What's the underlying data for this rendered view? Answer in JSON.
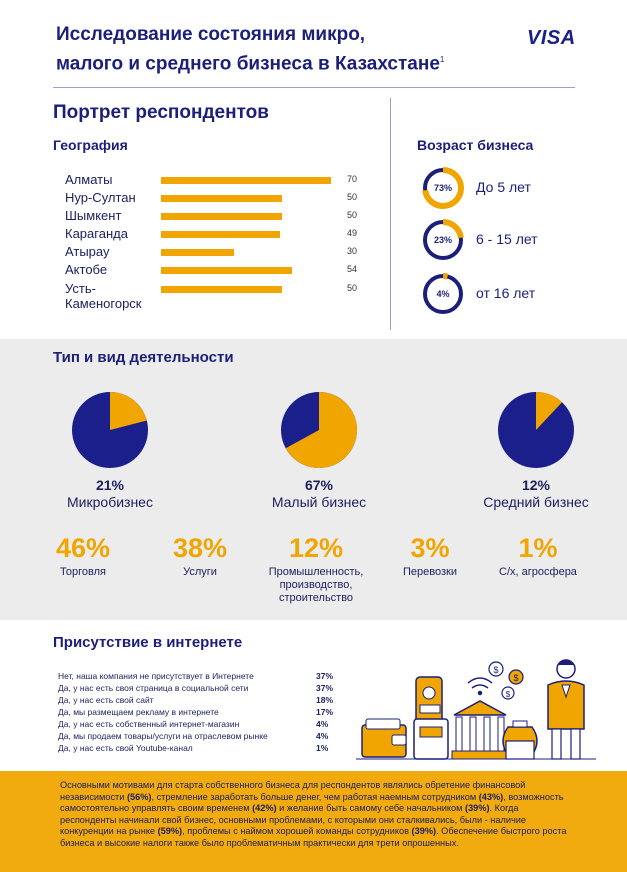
{
  "header": {
    "title_line1": "Исследование состояния микро,",
    "title_line2": "малого и среднего бизнеса в Казахстане",
    "footnote_mark": "1",
    "logo": "VISA"
  },
  "portrait": {
    "title": "Портрет респондентов",
    "geography": {
      "title": "География",
      "max": 70,
      "items": [
        {
          "label": "Алматы",
          "value": 70
        },
        {
          "label": "Нур-Султан",
          "value": 50
        },
        {
          "label": "Шымкент",
          "value": 50
        },
        {
          "label": "Караганда",
          "value": 49
        },
        {
          "label": "Атырау",
          "value": 30
        },
        {
          "label": "Актобе",
          "value": 54
        },
        {
          "label": "Усть-\nКаменогорск",
          "value": 50
        }
      ],
      "labels": [
        "Алматы",
        "Нур-Султан",
        "Шымкент",
        "Караганда",
        "Атырау",
        "Актобе",
        "Усть-Каменогорск"
      ],
      "values_text": [
        "70",
        "50",
        "50",
        "49",
        "30",
        "54",
        "50"
      ]
    },
    "age": {
      "title": "Возраст бизнеса",
      "items": [
        {
          "pct_text": "73%",
          "fraction": 0.73,
          "label": "До 5 лет"
        },
        {
          "pct_text": "23%",
          "fraction": 0.23,
          "label": "6 - 15 лет"
        },
        {
          "pct_text": "4%",
          "fraction": 0.04,
          "label": "от 16 лет"
        }
      ]
    }
  },
  "activity": {
    "title": "Тип и вид деятельности",
    "types": [
      {
        "pct_text": "21%",
        "fraction": 0.21,
        "label": "Микробизнес"
      },
      {
        "pct_text": "67%",
        "fraction": 0.67,
        "label": "Малый бизнес"
      },
      {
        "pct_text": "12%",
        "fraction": 0.12,
        "label": "Средний бизнес"
      }
    ],
    "sectors": [
      {
        "value": "46%",
        "label": "Торговля"
      },
      {
        "value": "38%",
        "label": "Услуги"
      },
      {
        "value": "12%",
        "label": "Промышленность, производство, строительство"
      },
      {
        "value": "3%",
        "label": "Перевозки"
      },
      {
        "value": "1%",
        "label": "С/х, агросфера"
      }
    ]
  },
  "internet": {
    "title": "Присутствие в интернете",
    "items": [
      {
        "label": "Нет, наша компания не присутствует в Интернете",
        "value": "37%"
      },
      {
        "label": "Да, у нас есть своя страница в социальной сети",
        "value": "37%"
      },
      {
        "label": "Да, у нас есть свой сайт",
        "value": "18%"
      },
      {
        "label": "Да, мы размещаем рекламу в интернете",
        "value": "17%"
      },
      {
        "label": "Да, у нас есть собственный интернет-магазин",
        "value": "4%"
      },
      {
        "label": "Да, мы продаем товары/услуги на отраслевом рынке",
        "value": "4%"
      },
      {
        "label": "Да, у нас есть свой Youtube-канал",
        "value": "1%"
      }
    ],
    "illustration_icons": [
      "wallet-icon",
      "phone-pay-icon",
      "bank-icon",
      "money-bag-icon",
      "dollar-coin-icon",
      "wifi-icon",
      "businessman-icon"
    ]
  },
  "footer": {
    "p1": "Основными мотивами для старта собственного бизнеса для респондентов являлись обретение финансовой независимости ",
    "b1": "(56%)",
    "p2": ", стремление заработать больше денег, чем работая наемным сотрудником ",
    "b2": "(43%)",
    "p3": ", возможность самостоятельно управлять своим временем ",
    "b3": "(42%)",
    "p4": " и желание быть самому себе начальником ",
    "b4": "(39%)",
    "p5": ". Когда респонденты начинали свой бизнес, основными проблемами, с которыми они сталкивались, были - наличие конкуренции на рынке ",
    "b5": "(59%)",
    "p6": ", проблемы с наймом хорошей команды сотрудников ",
    "b6": "(39%)",
    "p7": ". Обеспечение быстрого роста бизнеса и высокие налоги также было проблематичным практически для трети опрошенных."
  },
  "colors": {
    "navy": "#1b1f7a",
    "gold": "#f0a500",
    "ring_track": "#1b1f7a",
    "footer_bg": "#f2ab0f",
    "panel_bg": "#ececec"
  }
}
